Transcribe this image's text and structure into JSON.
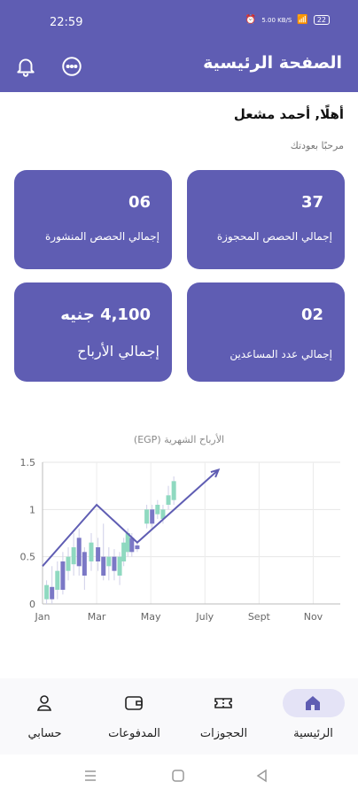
{
  "status_bar": {
    "time": "22:59",
    "network_speed": "5.00 KB/S",
    "battery": "22"
  },
  "app_bar": {
    "title": "الصفحة الرئيسية"
  },
  "greeting": {
    "title": "أهلًا, أحمد مشعل",
    "subtitle": "مرحبًا بعودتك"
  },
  "stats": [
    {
      "value": "37",
      "label": "إجمالي الحصص المحجوزة"
    },
    {
      "value": "06",
      "label": "إجمالي الحصص المنشورة"
    },
    {
      "value": "02",
      "label": "إجمالي عدد المساعدين"
    },
    {
      "value": "4,100 جنيه",
      "label": "إجمالي الأرباح"
    }
  ],
  "chart_data": {
    "type": "candlestick",
    "title": "الأرباح الشهرية (EGP)",
    "xlabel": "",
    "ylabel": "",
    "x_tick_labels": [
      "Jan",
      "Mar",
      "May",
      "July",
      "Sept",
      "Nov"
    ],
    "y_tick_labels": [
      "0",
      "0.5",
      "1",
      "1.5"
    ],
    "ylim": [
      0,
      1.5
    ],
    "grid": true,
    "colors": {
      "up": "#8fd9c0",
      "down": "#7b78c6",
      "trend": "#5f5db3"
    },
    "candles": [
      {
        "month": 0.15,
        "open": 0.05,
        "close": 0.2,
        "low": 0.0,
        "high": 0.25
      },
      {
        "month": 0.35,
        "open": 0.18,
        "close": 0.05,
        "low": 0.0,
        "high": 0.4
      },
      {
        "month": 0.55,
        "open": 0.15,
        "close": 0.35,
        "low": 0.05,
        "high": 0.45
      },
      {
        "month": 0.75,
        "open": 0.45,
        "close": 0.15,
        "low": 0.1,
        "high": 0.55
      },
      {
        "month": 0.95,
        "open": 0.35,
        "close": 0.5,
        "low": 0.25,
        "high": 0.6
      },
      {
        "month": 1.15,
        "open": 0.42,
        "close": 0.6,
        "low": 0.3,
        "high": 0.75
      },
      {
        "month": 1.35,
        "open": 0.7,
        "close": 0.4,
        "low": 0.3,
        "high": 0.8
      },
      {
        "month": 1.55,
        "open": 0.55,
        "close": 0.3,
        "low": 0.15,
        "high": 0.6
      },
      {
        "month": 1.8,
        "open": 0.45,
        "close": 0.65,
        "low": 0.35,
        "high": 0.75
      },
      {
        "month": 2.05,
        "open": 0.6,
        "close": 0.45,
        "low": 0.35,
        "high": 0.7
      },
      {
        "month": 2.25,
        "open": 0.5,
        "close": 0.3,
        "low": 0.25,
        "high": 0.85
      },
      {
        "month": 2.45,
        "open": 0.4,
        "close": 0.5,
        "low": 0.25,
        "high": 0.6
      },
      {
        "month": 2.65,
        "open": 0.5,
        "close": 0.35,
        "low": 0.25,
        "high": 0.58
      },
      {
        "month": 2.85,
        "open": 0.3,
        "close": 0.5,
        "low": 0.2,
        "high": 0.55
      },
      {
        "month": 3.0,
        "open": 0.45,
        "close": 0.65,
        "low": 0.4,
        "high": 0.7
      },
      {
        "month": 3.15,
        "open": 0.55,
        "close": 0.75,
        "low": 0.5,
        "high": 0.8
      },
      {
        "month": 3.3,
        "open": 0.7,
        "close": 0.55,
        "low": 0.5,
        "high": 0.75
      },
      {
        "month": 3.5,
        "open": 0.62,
        "close": 0.58,
        "low": 0.55,
        "high": 0.65
      },
      {
        "month": 3.85,
        "open": 0.85,
        "close": 1.0,
        "low": 0.8,
        "high": 1.05
      },
      {
        "month": 4.05,
        "open": 1.0,
        "close": 0.85,
        "low": 0.8,
        "high": 1.05
      },
      {
        "month": 4.25,
        "open": 0.95,
        "close": 1.05,
        "low": 0.9,
        "high": 1.1
      },
      {
        "month": 4.45,
        "open": 0.9,
        "close": 1.0,
        "low": 0.85,
        "high": 1.05
      },
      {
        "month": 4.65,
        "open": 1.05,
        "close": 1.15,
        "low": 1.0,
        "high": 1.25
      },
      {
        "month": 4.85,
        "open": 1.1,
        "close": 1.3,
        "low": 1.05,
        "high": 1.35
      }
    ],
    "trend_line": [
      {
        "month": 0.0,
        "value": 0.4
      },
      {
        "month": 2.0,
        "value": 1.05
      },
      {
        "month": 3.5,
        "value": 0.65
      },
      {
        "month": 6.5,
        "value": 1.42
      }
    ]
  },
  "bottom_nav": {
    "items": [
      {
        "label": "الرئيسية",
        "icon": "home-icon",
        "active": true
      },
      {
        "label": "الحجوزات",
        "icon": "ticket-icon",
        "active": false
      },
      {
        "label": "المدفوعات",
        "icon": "wallet-icon",
        "active": false
      },
      {
        "label": "حسابي",
        "icon": "user-icon",
        "active": false
      }
    ]
  }
}
